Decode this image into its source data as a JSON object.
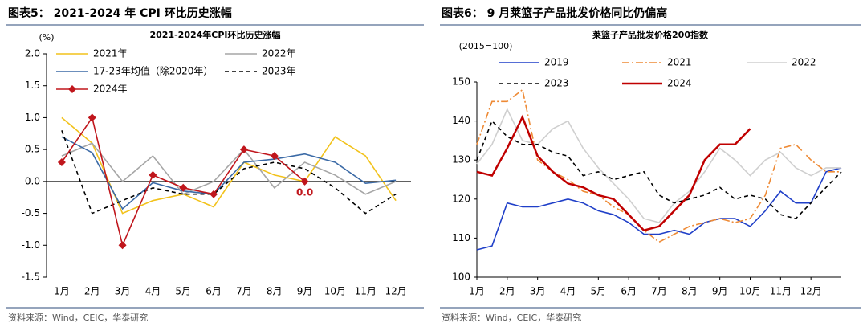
{
  "chart_data": [
    {
      "type": "line",
      "panel_title": "图表5：  2021-2024 年 CPI 环比历史涨幅",
      "title": "2021-2024年CPI环比历史涨幅",
      "unit": "(%)",
      "source": "资料来源：Wind，CEIC，华泰研究",
      "categories": [
        "1月",
        "2月",
        "3月",
        "4月",
        "5月",
        "6月",
        "7月",
        "8月",
        "9月",
        "10月",
        "11月",
        "12月"
      ],
      "ylim": [
        -1.5,
        2
      ],
      "yticks": [
        {
          "value": 2,
          "label": "2.0"
        },
        1.5,
        {
          "value": 1,
          "label": "1.0"
        },
        0.5,
        {
          "value": 0,
          "label": "0.0"
        },
        -0.5,
        {
          "value": -1,
          "label": "-1.0"
        },
        -1.5
      ],
      "series": [
        {
          "name": "2021年",
          "color": "#f2c21b",
          "style": "solid",
          "values": [
            1.0,
            0.6,
            -0.5,
            -0.3,
            -0.2,
            -0.4,
            0.3,
            0.1,
            0.0,
            0.7,
            0.4,
            -0.3
          ]
        },
        {
          "name": "2022年",
          "color": "#a6a6a6",
          "style": "solid",
          "values": [
            0.4,
            0.6,
            0.0,
            0.4,
            -0.2,
            0.0,
            0.5,
            -0.1,
            0.3,
            0.1,
            -0.2,
            0.0
          ]
        },
        {
          "name": "17-23年均值（除2020年）",
          "color": "#3b6aa6",
          "style": "solid",
          "values": [
            0.7,
            0.45,
            -0.43,
            -0.02,
            -0.15,
            -0.2,
            0.3,
            0.35,
            0.43,
            0.3,
            -0.03,
            0.02
          ]
        },
        {
          "name": "2023年",
          "color": "#000000",
          "style": "dashed",
          "values": [
            0.8,
            -0.5,
            -0.3,
            -0.1,
            -0.2,
            -0.2,
            0.2,
            0.3,
            0.2,
            -0.1,
            -0.5,
            -0.2
          ]
        },
        {
          "name": "2024年",
          "color": "#c0161c",
          "style": "solid",
          "marker": "diamond",
          "values": [
            0.3,
            1.0,
            -1.0,
            0.1,
            -0.1,
            -0.2,
            0.5,
            0.4,
            0.0,
            null,
            null,
            null
          ],
          "value_labels": [
            null,
            null,
            null,
            null,
            null,
            null,
            null,
            null,
            "0.0",
            null,
            null,
            null
          ]
        }
      ]
    },
    {
      "type": "line",
      "panel_title": "图表6：  9 月莱篮子产品批发价格同比仍偏高",
      "title": "莱篮子产品批发价格200指数",
      "unit": "(2015=100)",
      "source": "资料来源：Wind，CEIC，华泰研究",
      "x": [
        1,
        1.5,
        2,
        2.5,
        3,
        3.5,
        4,
        4.5,
        5,
        5.5,
        6,
        6.5,
        7,
        7.5,
        8,
        8.5,
        9,
        9.5,
        10,
        10.5,
        11,
        11.5,
        12,
        12.5,
        13
      ],
      "xlim": [
        1,
        13
      ],
      "xticks": [
        {
          "value": 1,
          "label": "1月"
        },
        {
          "value": 2,
          "label": "2月"
        },
        {
          "value": 3,
          "label": "3月"
        },
        {
          "value": 4,
          "label": "4月"
        },
        {
          "value": 5,
          "label": "5月"
        },
        {
          "value": 6,
          "label": "6月"
        },
        {
          "value": 7,
          "label": "7月"
        },
        {
          "value": 8,
          "label": "8月"
        },
        {
          "value": 9,
          "label": "9月"
        },
        {
          "value": 10,
          "label": "10月"
        },
        {
          "value": 11,
          "label": "11月"
        },
        {
          "value": 12,
          "label": "12月"
        }
      ],
      "ylim": [
        100,
        150
      ],
      "yticks": [
        100,
        110,
        120,
        130,
        140,
        150
      ],
      "series": [
        {
          "name": "2019",
          "color": "#1f3fc8",
          "style": "solid",
          "values": [
            107,
            108,
            119,
            118,
            118,
            119,
            120,
            119,
            117,
            116,
            114,
            111,
            111,
            112,
            111,
            114,
            115,
            115,
            113,
            117,
            122,
            119,
            119,
            127,
            128
          ]
        },
        {
          "name": "2021",
          "color": "#ee8a35",
          "style": "dash-dot",
          "values": [
            134,
            145,
            145,
            148,
            130,
            127,
            125,
            122,
            121,
            118,
            116,
            112,
            109,
            111,
            113,
            114,
            115,
            114,
            115,
            121,
            133,
            134,
            130,
            127,
            127
          ]
        },
        {
          "name": "2022",
          "color": "#cfcfcf",
          "style": "solid",
          "values": [
            129,
            134,
            143,
            135,
            134,
            138,
            140,
            133,
            128,
            124,
            120,
            115,
            114,
            119,
            122,
            127,
            133,
            130,
            126,
            130,
            132,
            128,
            126,
            128,
            128
          ]
        },
        {
          "name": "2023",
          "color": "#000000",
          "style": "dashed",
          "values": [
            130,
            140,
            136,
            134,
            134,
            132,
            131,
            126,
            127,
            125,
            126,
            127,
            121,
            119,
            120,
            121,
            123,
            120,
            121,
            120,
            116,
            115,
            119,
            123,
            127
          ]
        },
        {
          "name": "2024",
          "color": "#c00000",
          "style": "solid",
          "width": 2.5,
          "values": [
            127,
            126,
            133,
            141,
            131,
            127,
            124,
            123,
            121,
            120,
            116,
            112,
            113,
            117,
            121,
            130,
            134,
            134,
            138,
            null,
            null,
            null,
            null,
            null,
            null
          ]
        }
      ]
    }
  ]
}
